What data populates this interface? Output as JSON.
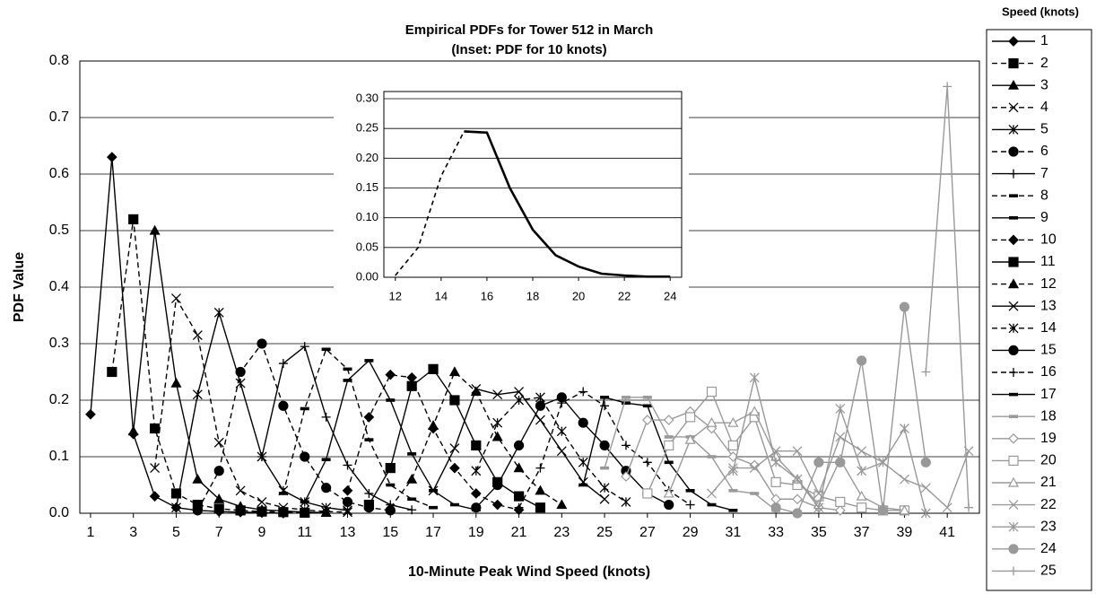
{
  "chart_data": [
    {
      "type": "line",
      "title": "Empirical PDFs for Tower 512 in March",
      "subtitle": "(Inset:  PDF for 10 knots)",
      "x_label": "10-Minute Peak Wind Speed (knots)",
      "y_label": "PDF Value",
      "legend_title": "Speed (knots)",
      "grid": true,
      "legend": "right",
      "xlim": [
        0.5,
        42.5
      ],
      "xticks": [
        1,
        3,
        5,
        7,
        9,
        11,
        13,
        15,
        17,
        19,
        21,
        23,
        25,
        27,
        29,
        31,
        33,
        35,
        37,
        39,
        41
      ],
      "ylim": [
        0,
        0.8
      ],
      "yticks": [
        {
          "value": 0,
          "label": "0.0"
        },
        0.1,
        0.2,
        0.3,
        0.4,
        0.5,
        0.6,
        0.7,
        0.8
      ],
      "series": [
        {
          "name": "1",
          "color": "#000000",
          "marker": "diamond",
          "dashed": false,
          "x": [
            1,
            2,
            3,
            4,
            5,
            6,
            7,
            8,
            9,
            10
          ],
          "values": [
            0.175,
            0.63,
            0.14,
            0.03,
            0.01,
            0.005,
            0.003,
            0.002,
            0.001,
            0
          ]
        },
        {
          "name": "2",
          "color": "#000000",
          "marker": "square",
          "dashed": true,
          "x": [
            2,
            3,
            4,
            5,
            6,
            7,
            8,
            9,
            10,
            11
          ],
          "values": [
            0.25,
            0.52,
            0.15,
            0.035,
            0.015,
            0.008,
            0.005,
            0.003,
            0.002,
            0.001
          ]
        },
        {
          "name": "3",
          "color": "#000000",
          "marker": "triangle",
          "dashed": false,
          "x": [
            3,
            4,
            5,
            6,
            7,
            8,
            9,
            10,
            11,
            12
          ],
          "values": [
            0.145,
            0.5,
            0.23,
            0.06,
            0.025,
            0.012,
            0.006,
            0.004,
            0.002,
            0.001
          ]
        },
        {
          "name": "4",
          "color": "#000000",
          "marker": "x",
          "dashed": true,
          "x": [
            4,
            5,
            6,
            7,
            8,
            9,
            10,
            11,
            12,
            13
          ],
          "values": [
            0.08,
            0.38,
            0.315,
            0.125,
            0.04,
            0.02,
            0.01,
            0.006,
            0.003,
            0.002
          ]
        },
        {
          "name": "5",
          "color": "#000000",
          "marker": "asterisk",
          "dashed": false,
          "x": [
            5,
            6,
            7,
            8,
            9,
            10,
            11,
            12,
            13
          ],
          "values": [
            0.01,
            0.21,
            0.355,
            0.23,
            0.1,
            0.04,
            0.02,
            0.01,
            0.005
          ]
        },
        {
          "name": "6",
          "color": "#000000",
          "marker": "circle",
          "dashed": true,
          "x": [
            6,
            7,
            8,
            9,
            10,
            11,
            12,
            13,
            14,
            15
          ],
          "values": [
            0.005,
            0.075,
            0.25,
            0.3,
            0.19,
            0.1,
            0.045,
            0.02,
            0.01,
            0.005
          ]
        },
        {
          "name": "7",
          "color": "#000000",
          "marker": "plus",
          "dashed": false,
          "x": [
            9,
            10,
            11,
            12,
            13,
            14,
            15,
            16
          ],
          "values": [
            0.1,
            0.265,
            0.295,
            0.17,
            0.085,
            0.035,
            0.015,
            0.006
          ]
        },
        {
          "name": "8",
          "color": "#000000",
          "marker": "dash",
          "dashed": true,
          "x": [
            10,
            11,
            12,
            13,
            14,
            15,
            16,
            17
          ],
          "values": [
            0.035,
            0.185,
            0.29,
            0.255,
            0.13,
            0.05,
            0.025,
            0.01
          ]
        },
        {
          "name": "9",
          "color": "#000000",
          "marker": "dash",
          "dashed": false,
          "x": [
            11,
            12,
            13,
            14,
            15,
            16,
            17,
            18,
            19
          ],
          "values": [
            0.02,
            0.095,
            0.235,
            0.27,
            0.2,
            0.105,
            0.04,
            0.015,
            0.006
          ]
        },
        {
          "name": "10",
          "color": "#000000",
          "marker": "diamond",
          "dashed": true,
          "x": [
            13,
            14,
            15,
            16,
            17,
            18,
            19,
            20,
            21
          ],
          "values": [
            0.04,
            0.17,
            0.245,
            0.24,
            0.15,
            0.08,
            0.035,
            0.015,
            0.006
          ]
        },
        {
          "name": "11",
          "color": "#000000",
          "marker": "square",
          "dashed": false,
          "x": [
            14,
            15,
            16,
            17,
            18,
            19,
            20,
            21,
            22
          ],
          "values": [
            0.015,
            0.08,
            0.225,
            0.255,
            0.2,
            0.12,
            0.055,
            0.03,
            0.01
          ]
        },
        {
          "name": "12",
          "color": "#000000",
          "marker": "triangle",
          "dashed": true,
          "x": [
            15,
            16,
            17,
            18,
            19,
            20,
            21,
            22,
            23
          ],
          "values": [
            0.01,
            0.06,
            0.155,
            0.25,
            0.215,
            0.135,
            0.08,
            0.04,
            0.015
          ]
        },
        {
          "name": "13",
          "color": "#000000",
          "marker": "x",
          "dashed": false,
          "x": [
            17,
            18,
            19,
            20,
            21,
            22,
            23,
            24,
            25
          ],
          "values": [
            0.04,
            0.115,
            0.22,
            0.21,
            0.215,
            0.165,
            0.11,
            0.055,
            0.025
          ]
        },
        {
          "name": "14",
          "color": "#000000",
          "marker": "asterisk",
          "dashed": true,
          "x": [
            19,
            20,
            21,
            22,
            23,
            24,
            25,
            26
          ],
          "values": [
            0.075,
            0.16,
            0.2,
            0.205,
            0.145,
            0.09,
            0.045,
            0.02
          ]
        },
        {
          "name": "15",
          "color": "#000000",
          "marker": "circle",
          "dashed": false,
          "x": [
            19,
            20,
            21,
            22,
            23,
            24,
            25,
            26,
            27,
            28
          ],
          "values": [
            0.01,
            0.05,
            0.12,
            0.19,
            0.205,
            0.16,
            0.12,
            0.075,
            0.035,
            0.015
          ]
        },
        {
          "name": "16",
          "color": "#000000",
          "marker": "plus",
          "dashed": true,
          "x": [
            21,
            22,
            23,
            24,
            25,
            26,
            27,
            28,
            29
          ],
          "values": [
            0.01,
            0.08,
            0.195,
            0.215,
            0.19,
            0.12,
            0.09,
            0.04,
            0.015
          ]
        },
        {
          "name": "17",
          "color": "#000000",
          "marker": "dash",
          "dashed": false,
          "x": [
            24,
            25,
            26,
            27,
            28,
            29,
            30,
            31
          ],
          "values": [
            0.05,
            0.205,
            0.195,
            0.19,
            0.09,
            0.04,
            0.015,
            0.005
          ]
        },
        {
          "name": "18",
          "color": "#999999",
          "marker": "dash",
          "dashed": false,
          "x": [
            25,
            26,
            27,
            28,
            29,
            30,
            31,
            32,
            33
          ],
          "values": [
            0.08,
            0.205,
            0.205,
            0.135,
            0.135,
            0.1,
            0.04,
            0.035,
            0.005
          ]
        },
        {
          "name": "19",
          "color": "#999999",
          "marker": "diamond",
          "open": true,
          "dashed": false,
          "x": [
            26,
            27,
            28,
            29,
            30,
            31,
            32,
            33,
            34,
            35,
            36
          ],
          "values": [
            0.065,
            0.165,
            0.165,
            0.18,
            0.15,
            0.1,
            0.085,
            0.025,
            0.025,
            0.01,
            0.005
          ]
        },
        {
          "name": "20",
          "color": "#999999",
          "marker": "square",
          "open": true,
          "dashed": false,
          "x": [
            27,
            28,
            29,
            30,
            31,
            32,
            33,
            34,
            35,
            36,
            37,
            38,
            39
          ],
          "values": [
            0.035,
            0.12,
            0.17,
            0.215,
            0.12,
            0.17,
            0.055,
            0.05,
            0.03,
            0.02,
            0.01,
            0.005,
            0.005
          ]
        },
        {
          "name": "21",
          "color": "#999999",
          "marker": "triangle",
          "open": true,
          "dashed": false,
          "x": [
            28,
            29,
            30,
            31,
            32,
            33,
            34,
            35,
            36,
            37,
            38,
            39
          ],
          "values": [
            0.035,
            0.13,
            0.16,
            0.16,
            0.18,
            0.1,
            0.06,
            0.015,
            0.095,
            0.03,
            0.01,
            0.005
          ]
        },
        {
          "name": "22",
          "color": "#999999",
          "marker": "x",
          "dashed": false,
          "x": [
            30,
            31,
            32,
            33,
            34,
            35,
            36,
            37,
            38,
            39,
            40,
            41,
            42
          ],
          "values": [
            0.035,
            0.08,
            0.08,
            0.11,
            0.11,
            0.035,
            0.135,
            0.11,
            0.09,
            0.06,
            0.045,
            0.01,
            0.11
          ]
        },
        {
          "name": "23",
          "color": "#999999",
          "marker": "asterisk",
          "dashed": false,
          "x": [
            31,
            32,
            33,
            34,
            35,
            36,
            37,
            38,
            39,
            40
          ],
          "values": [
            0.075,
            0.24,
            0.09,
            0.06,
            0.01,
            0.185,
            0.075,
            0.09,
            0.15,
            0
          ]
        },
        {
          "name": "24",
          "color": "#999999",
          "marker": "circle",
          "dashed": false,
          "x": [
            33,
            34,
            35,
            36,
            37,
            38,
            39,
            40
          ],
          "values": [
            0.01,
            0,
            0.09,
            0.09,
            0.27,
            0.005,
            0.365,
            0.09
          ]
        },
        {
          "name": "25",
          "color": "#999999",
          "marker": "plus",
          "dashed": false,
          "x": [
            40,
            41,
            42
          ],
          "values": [
            0.25,
            0.755,
            0.01
          ]
        }
      ]
    },
    {
      "type": "line",
      "color": "#000000",
      "xlim": [
        11.5,
        24.5
      ],
      "xticks": [
        12,
        14,
        16,
        18,
        20,
        22,
        24
      ],
      "ylim": [
        0,
        0.3
      ],
      "yticks": [
        {
          "value": 0,
          "label": "0.00"
        },
        0.05,
        {
          "value": 0.1,
          "label": "0.10"
        },
        0.15,
        {
          "value": 0.2,
          "label": "0.20"
        },
        0.25,
        {
          "value": 0.3,
          "label": "0.30"
        }
      ],
      "grid": true,
      "x": [
        12,
        13,
        14,
        15,
        16,
        17,
        18,
        19,
        20,
        21,
        22,
        23,
        24
      ],
      "values": [
        0.003,
        0.05,
        0.17,
        0.245,
        0.243,
        0.15,
        0.08,
        0.037,
        0.018,
        0.006,
        0.003,
        0.001,
        0.001
      ]
    }
  ]
}
